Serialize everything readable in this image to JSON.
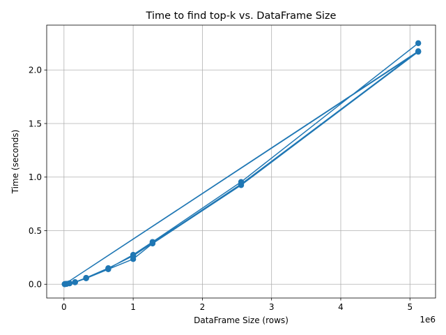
{
  "chart_data": {
    "type": "line",
    "title": "Time to find top-k vs. DataFrame Size",
    "xlabel": "DataFrame Size (rows)",
    "ylabel": "Time (seconds)",
    "x_offset_text": "1e6",
    "xlim": [
      -250000,
      5370000
    ],
    "ylim": [
      -0.1285,
      2.4185
    ],
    "xticks": [
      0,
      1000000,
      2000000,
      3000000,
      4000000,
      5000000
    ],
    "xtick_labels": [
      "0",
      "1",
      "2",
      "3",
      "4",
      "5"
    ],
    "yticks": [
      0.0,
      0.5,
      1.0,
      1.5,
      2.0
    ],
    "ytick_labels": [
      "0.0",
      "0.5",
      "1.0",
      "1.5",
      "2.0"
    ],
    "grid": true,
    "color": "#1f77b4",
    "series": [
      {
        "x": [
          10000,
          20000,
          40000,
          80000,
          160000,
          320000,
          640000,
          1000000,
          1280000,
          2560000,
          5120000,
          10000,
          20000,
          40000,
          80000,
          160000,
          320000,
          640000,
          1000000,
          1280000,
          2560000,
          5120000,
          10000,
          20000,
          40000,
          80000,
          160000,
          320000,
          640000,
          1000000,
          1280000,
          2560000,
          5120000
        ],
        "y": [
          0.001,
          0.002,
          0.004,
          0.008,
          0.018,
          0.055,
          0.14,
          0.235,
          0.38,
          0.925,
          2.17,
          0.001,
          0.002,
          0.004,
          0.009,
          0.02,
          0.06,
          0.15,
          0.265,
          0.385,
          0.935,
          2.175,
          0.001,
          0.002,
          0.004,
          0.009,
          0.019,
          0.058,
          0.145,
          0.275,
          0.395,
          0.955,
          2.25
        ]
      }
    ]
  }
}
